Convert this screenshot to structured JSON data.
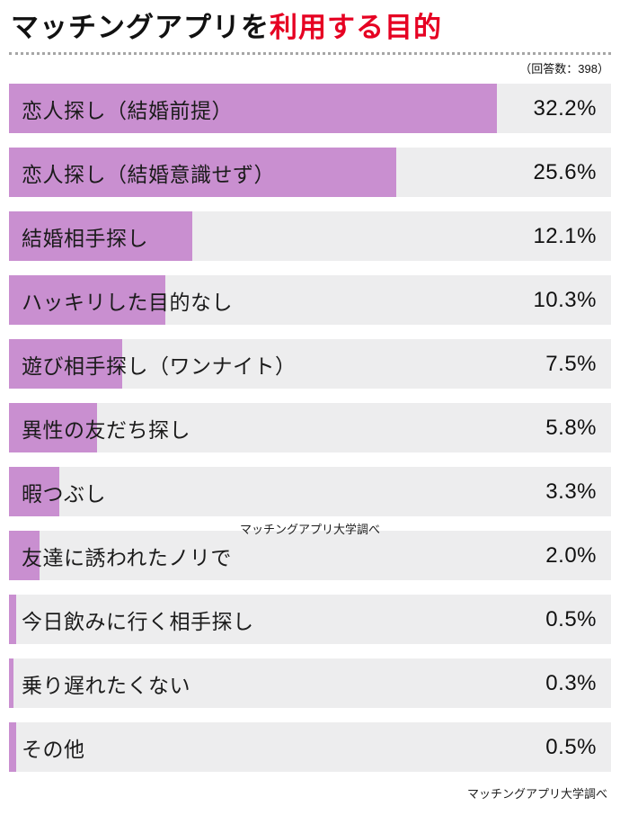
{
  "header": {
    "title_black": "マッチングアプリを",
    "title_red": "利用する目的",
    "response_count": "（回答数：398）",
    "accent_color": "#e60022"
  },
  "chart_data": {
    "type": "bar",
    "orientation": "horizontal",
    "title": "マッチングアプリを利用する目的",
    "categories": [
      "恋人探し（結婚前提）",
      "恋人探し（結婚意識せず）",
      "結婚相手探し",
      "ハッキリした目的なし",
      "遊び相手探し（ワンナイト）",
      "異性の友だち探し",
      "暇つぶし",
      "友達に誘われたノリで",
      "今日飲みに行く相手探し",
      "乗り遅れたくない",
      "その他"
    ],
    "values": [
      32.2,
      25.6,
      12.1,
      10.3,
      7.5,
      5.8,
      3.3,
      2.0,
      0.5,
      0.3,
      0.5
    ],
    "value_labels": [
      "32.2%",
      "25.6%",
      "12.1%",
      "10.3%",
      "7.5%",
      "5.8%",
      "3.3%",
      "2.0%",
      "0.5%",
      "0.3%",
      "0.5%"
    ],
    "max_value": 32.2,
    "bar_color": "#c98fd0",
    "track_color": "#ededee",
    "legend": "none",
    "grid": false
  },
  "watermark": {
    "middle": "マッチングアプリ大学調べ",
    "bottom": "マッチングアプリ大学調べ"
  }
}
